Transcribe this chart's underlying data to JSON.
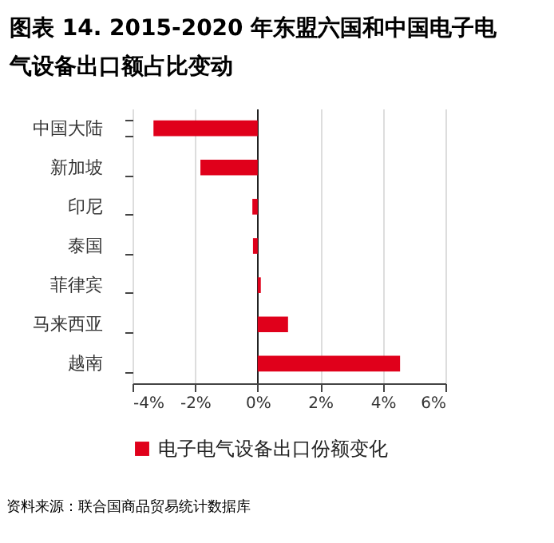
{
  "chart_data": {
    "type": "bar",
    "orientation": "horizontal",
    "title": "图表 14. 2015-2020 年东盟六国和中国电子电气设备出口额占比变动",
    "categories": [
      "中国大陆",
      "新加坡",
      "印尼",
      "泰国",
      "菲律宾",
      "马来西亚",
      "越南"
    ],
    "series": [
      {
        "name": "电子电气设备出口份额变化",
        "color": "#e0001b",
        "values": [
          -3.33,
          -1.83,
          -0.17,
          -0.15,
          0.1,
          0.97,
          4.55
        ]
      }
    ],
    "xlim": [
      -4,
      6
    ],
    "xticks": [
      {
        "value": -4,
        "label": "-4%"
      },
      {
        "value": -2,
        "label": "-2%"
      },
      {
        "value": 0,
        "label": "0%"
      },
      {
        "value": 2,
        "label": "2%"
      },
      {
        "value": 4,
        "label": "4%"
      },
      {
        "value": 6,
        "label": "6%"
      }
    ],
    "grid": "x",
    "legend": "bottom",
    "annotations": [
      "资料来源：联合国商品贸易统计数据库"
    ]
  }
}
